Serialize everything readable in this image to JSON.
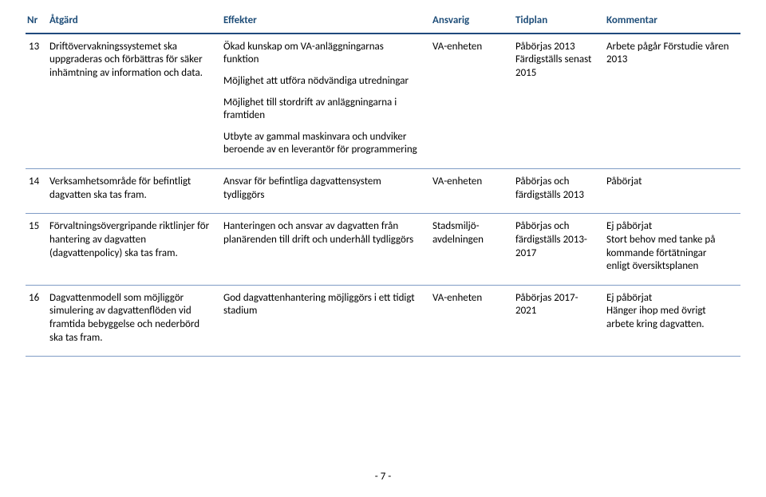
{
  "colors": {
    "header_text": "#1f4e79",
    "header_rule": "#1f497d",
    "row_rule": "#7f9cc5",
    "body_text": "#000000",
    "background": "#ffffff"
  },
  "fontsizes": {
    "body": 13,
    "footer": 13
  },
  "columns": {
    "nr": "Nr",
    "atgard": "Åtgärd",
    "effekter": "Effekter",
    "ansvarig": "Ansvarig",
    "tidplan": "Tidplan",
    "kommentar": "Kommentar"
  },
  "rows": [
    {
      "nr": "13",
      "atgard": "Driftövervakningssystemet ska uppgraderas och förbättras för säker inhämtning av information och data.",
      "effekter": [
        "Ökad kunskap om VA-anläggningarnas funktion",
        "Möjlighet att utföra nödvändiga utredningar",
        "Möjlighet till stordrift av anläggningarna i framtiden",
        "Utbyte av gammal maskinvara och undviker beroende av en leverantör för programmering"
      ],
      "ansvarig": "VA-enheten",
      "tidplan": "Påbörjas 2013 Färdigställs senast 2015",
      "kommentar": "Arbete pågår Förstudie våren 2013"
    },
    {
      "nr": "14",
      "atgard": "Verksamhetsområde för befintligt dagvatten ska tas fram.",
      "effekter": [
        "Ansvar för befintliga dagvattensystem tydliggörs"
      ],
      "ansvarig": "VA-enheten",
      "tidplan": "Påbörjas och färdigställs 2013",
      "kommentar": "Påbörjat"
    },
    {
      "nr": "15",
      "atgard": "Förvaltningsövergripande riktlinjer för hantering av dagvatten (dagvattenpolicy) ska tas fram.",
      "effekter": [
        "Hanteringen och ansvar av dagvatten från planärenden till drift och underhåll tydliggörs"
      ],
      "ansvarig": "Stadsmiljö-avdelningen",
      "tidplan": "Påbörjas och färdigställs 2013-2017",
      "kommentar": "Ej påbörjat\nStort behov med tanke på kommande förtätningar enligt översiktsplanen"
    },
    {
      "nr": "16",
      "atgard": "Dagvattenmodell som möjliggör simulering av dagvattenflöden vid framtida bebyggelse och nederbörd ska tas fram.",
      "effekter": [
        "God dagvattenhantering möjliggörs i ett tidigt stadium"
      ],
      "ansvarig": "VA-enheten",
      "tidplan": "Påbörjas 2017-2021",
      "kommentar": "Ej påbörjat\nHänger ihop med övrigt arbete kring dagvatten."
    }
  ],
  "footer": "- 7 -"
}
